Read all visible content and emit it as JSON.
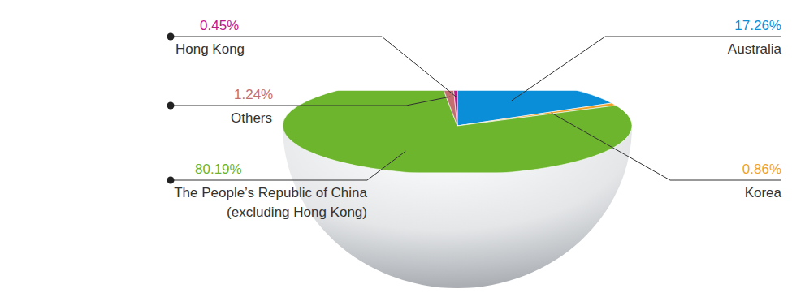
{
  "chart_data": {
    "type": "pie",
    "categories": [
      "Australia",
      "Korea",
      "The People’s Republic of China (excluding Hong Kong)",
      "Others",
      "Hong Kong"
    ],
    "values": [
      17.26,
      0.86,
      80.19,
      1.24,
      0.45
    ],
    "value_labels": [
      "17.26%",
      "0.86%",
      "80.19%",
      "1.24%",
      "0.45%"
    ],
    "colors": [
      "#0b8ed8",
      "#f0a12a",
      "#6cb52d",
      "#c46f6f",
      "#c0168c"
    ],
    "data_labels": true
  }
}
